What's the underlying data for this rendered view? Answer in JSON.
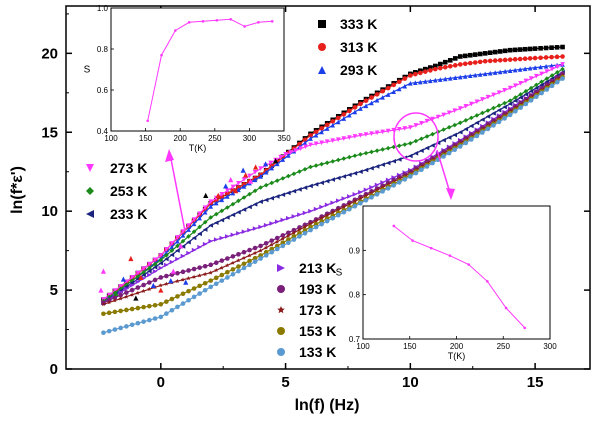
{
  "chart_data": {
    "type": "scatter",
    "xlabel": "ln(f) (Hz)",
    "ylabel": "ln(f*ε')",
    "xlim": [
      -3.8,
      17.2
    ],
    "ylim": [
      0,
      23
    ],
    "xticks": [
      "0",
      "5",
      "10",
      "15"
    ],
    "yticks": [
      "0",
      "5",
      "10",
      "15",
      "20"
    ],
    "series": [
      {
        "name": "333 K",
        "color": "#000000",
        "marker": "square",
        "x": [
          -2.3,
          0,
          2,
          4,
          6,
          8,
          10,
          11,
          12,
          13,
          14,
          15,
          16.1
        ],
        "y": [
          4.4,
          7.2,
          10.5,
          12.3,
          14.9,
          16.9,
          18.7,
          19.2,
          19.8,
          20.0,
          20.2,
          20.3,
          20.4
        ]
      },
      {
        "name": "313 K",
        "color": "#e8201c",
        "marker": "circle",
        "x": [
          -2.3,
          0,
          2,
          4,
          6,
          8,
          10,
          11,
          12,
          13,
          14,
          15,
          16.1
        ],
        "y": [
          4.3,
          7.2,
          10.5,
          12.3,
          14.8,
          16.8,
          18.6,
          19.0,
          19.3,
          19.5,
          19.6,
          19.7,
          19.8
        ]
      },
      {
        "name": "293 K",
        "color": "#1c3ee8",
        "marker": "triangle-up",
        "x": [
          -2.3,
          0,
          2,
          4,
          6,
          8,
          10,
          11,
          12,
          13,
          14,
          15,
          16.1
        ],
        "y": [
          4.2,
          7.0,
          10.3,
          12.2,
          14.6,
          16.5,
          18.1,
          18.3,
          18.5,
          18.7,
          18.9,
          19.1,
          19.3
        ]
      },
      {
        "name": "273 K",
        "color": "#ff38ff",
        "marker": "triangle-down",
        "x": [
          -2.3,
          0,
          2,
          4,
          5,
          6,
          8,
          10,
          12,
          14,
          16.1
        ],
        "y": [
          4.4,
          7.2,
          10.6,
          12.7,
          13.6,
          14.2,
          14.8,
          15.3,
          16.5,
          17.8,
          19.3
        ]
      },
      {
        "name": "253 K",
        "color": "#1a8a1a",
        "marker": "diamond",
        "x": [
          -2.3,
          0,
          2,
          4,
          6,
          8,
          10,
          12,
          14,
          16.1
        ],
        "y": [
          4.3,
          6.9,
          9.6,
          11.5,
          12.8,
          13.6,
          14.3,
          15.6,
          17.0,
          19.0
        ]
      },
      {
        "name": "233 K",
        "color": "#1a237e",
        "marker": "triangle-left",
        "x": [
          -2.3,
          0,
          2,
          4,
          6,
          8,
          10,
          12,
          14,
          16.1
        ],
        "y": [
          4.2,
          6.7,
          9.1,
          10.6,
          11.6,
          12.5,
          13.5,
          15.0,
          16.8,
          18.8
        ]
      },
      {
        "name": "213 K",
        "color": "#8a2be2",
        "marker": "triangle-right",
        "x": [
          -2.3,
          0,
          2,
          4,
          6,
          8,
          10,
          12,
          14,
          16.1
        ],
        "y": [
          4.2,
          6.4,
          8.1,
          9.0,
          10.0,
          11.2,
          12.6,
          14.5,
          16.5,
          18.7
        ]
      },
      {
        "name": "193 K",
        "color": "#7a1f7a",
        "marker": "circle",
        "x": [
          -2.3,
          0,
          2,
          4,
          6,
          8,
          10,
          12,
          14,
          16.1
        ],
        "y": [
          4.2,
          5.8,
          6.6,
          7.8,
          9.3,
          10.9,
          12.5,
          14.4,
          16.4,
          18.7
        ]
      },
      {
        "name": "173 K",
        "color": "#8b1a1a",
        "marker": "star",
        "x": [
          -2.3,
          0,
          2,
          4,
          6,
          8,
          10,
          12,
          14,
          16.1
        ],
        "y": [
          4.1,
          5.3,
          6.1,
          7.5,
          9.2,
          10.8,
          12.4,
          14.3,
          16.3,
          18.6
        ]
      },
      {
        "name": "153 K",
        "color": "#8a7a00",
        "marker": "circle",
        "x": [
          -2.3,
          0,
          2,
          4,
          6,
          8,
          10,
          12,
          14,
          16.1
        ],
        "y": [
          3.5,
          4.1,
          5.6,
          7.2,
          9.0,
          10.6,
          12.3,
          14.2,
          16.2,
          18.5
        ]
      },
      {
        "name": "133 K",
        "color": "#5a9ad0",
        "marker": "circle",
        "x": [
          -2.3,
          0,
          2,
          4,
          6,
          8,
          10,
          12,
          14,
          16.1
        ],
        "y": [
          2.3,
          3.3,
          5.2,
          7.0,
          8.8,
          10.5,
          12.2,
          14.1,
          16.1,
          18.4
        ]
      }
    ],
    "scatter_points": {
      "color_keys": [
        "#e8201c",
        "#1c3ee8",
        "#ff38ff",
        "#000000",
        "#1a8a1a"
      ],
      "points": [
        {
          "x": 2.3,
          "y": 11.0,
          "c": 0
        },
        {
          "x": 3.0,
          "y": 11.3,
          "c": 0
        },
        {
          "x": 3.4,
          "y": 12.3,
          "c": 0
        },
        {
          "x": 3.8,
          "y": 12.8,
          "c": 0
        },
        {
          "x": 2.6,
          "y": 11.6,
          "c": 1
        },
        {
          "x": 3.3,
          "y": 12.6,
          "c": 1
        },
        {
          "x": 4.2,
          "y": 13.0,
          "c": 1
        },
        {
          "x": 3.6,
          "y": 11.9,
          "c": 2
        },
        {
          "x": 2.8,
          "y": 12.0,
          "c": 2
        },
        {
          "x": 4.6,
          "y": 13.2,
          "c": 3
        },
        {
          "x": 1.8,
          "y": 11.0,
          "c": 3
        },
        {
          "x": -1.5,
          "y": 5.7,
          "c": 1
        },
        {
          "x": -0.8,
          "y": 5.8,
          "c": 0
        },
        {
          "x": -2.3,
          "y": 6.2,
          "c": 2
        },
        {
          "x": -1.2,
          "y": 7.0,
          "c": 0
        },
        {
          "x": -0.3,
          "y": 5.3,
          "c": 1
        },
        {
          "x": -2.4,
          "y": 5.0,
          "c": 2
        },
        {
          "x": -1.8,
          "y": 4.8,
          "c": 4
        },
        {
          "x": 0.4,
          "y": 5.6,
          "c": 1
        },
        {
          "x": -1.0,
          "y": 4.5,
          "c": 3
        },
        {
          "x": 0.0,
          "y": 5.0,
          "c": 0
        },
        {
          "x": 0.5,
          "y": 6.2,
          "c": 2
        },
        {
          "x": 1.0,
          "y": 5.5,
          "c": 1
        },
        {
          "x": 0.8,
          "y": 7.8,
          "c": 2
        }
      ]
    },
    "legend_top": [
      "333 K",
      "313 K",
      "293 K"
    ],
    "legend_mid": [
      "273 K",
      "253 K",
      "233 K"
    ],
    "legend_bottom": [
      "213 K",
      "193 K",
      "173 K",
      "153 K",
      "133 K"
    ],
    "insets": [
      {
        "type": "line",
        "xlabel": "T(K)",
        "ylabel": "S",
        "xlim": [
          100,
          350
        ],
        "ylim": [
          0.4,
          1.0
        ],
        "xticks": [
          "100",
          "150",
          "200",
          "250",
          "300",
          "350"
        ],
        "yticks": [
          "0.4",
          "0.6",
          "0.8",
          "1.0"
        ],
        "color": "#ff38ff",
        "x": [
          153,
          173,
          193,
          213,
          233,
          253,
          273,
          293,
          313,
          333
        ],
        "y": [
          0.45,
          0.77,
          0.89,
          0.93,
          0.935,
          0.94,
          0.945,
          0.91,
          0.93,
          0.935
        ]
      },
      {
        "type": "line",
        "xlabel": "T(K)",
        "ylabel": "S",
        "xlim": [
          100,
          300
        ],
        "ylim": [
          0.7,
          1.0
        ],
        "xticks": [
          "100",
          "150",
          "200",
          "250",
          "300"
        ],
        "yticks": [
          "0.7",
          "0.8",
          "0.9"
        ],
        "color": "#ff38ff",
        "x": [
          133,
          153,
          173,
          193,
          213,
          233,
          253,
          273
        ],
        "y": [
          0.955,
          0.922,
          0.905,
          0.888,
          0.868,
          0.83,
          0.77,
          0.725
        ]
      }
    ]
  }
}
